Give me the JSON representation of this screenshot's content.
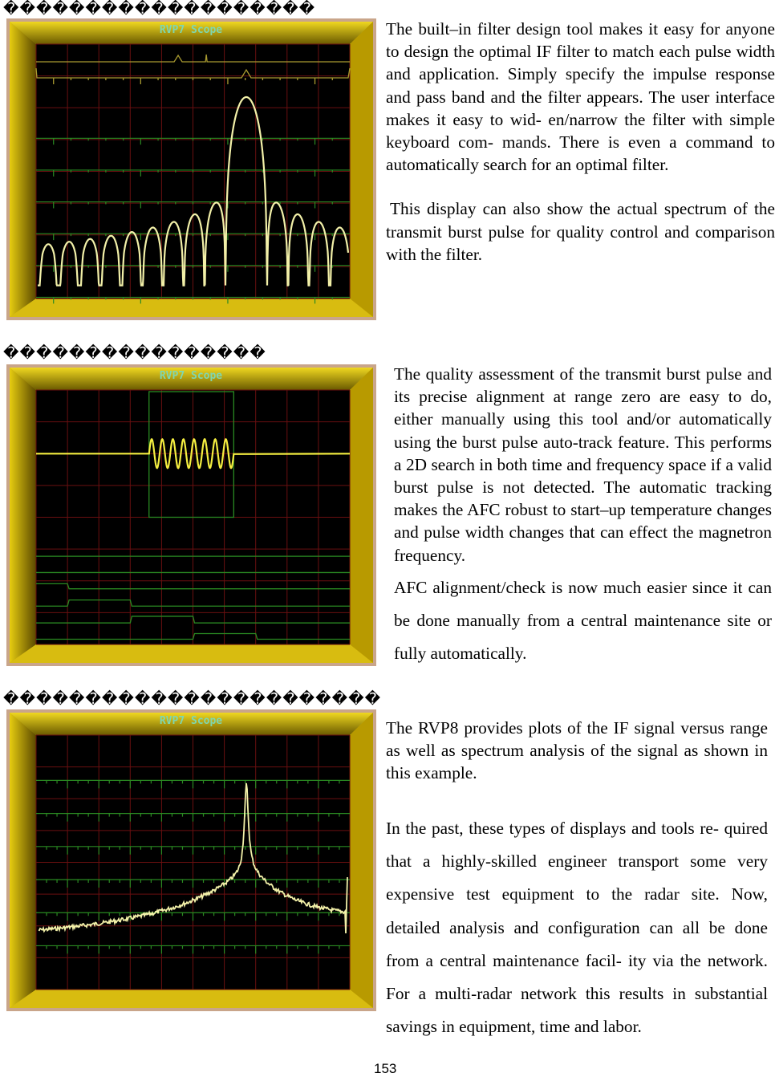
{
  "sections": [
    {
      "heading": "�������������������",
      "scope_title": "RVP7 Scope",
      "paragraphs": [
        "The built–in filter design tool makes it easy for anyone to design the optimal IF filter to match each pulse width and application. Simply specify the impulse response and pass band and the filter appears. The user interface makes it easy to wid- en/narrow the filter with simple keyboard com- mands. There is even a command to automatically search for an optimal filter.",
        "This display can also show the actual spectrum of the transmit burst pulse for quality control and comparison with the filter."
      ]
    },
    {
      "heading": "����������������",
      "scope_title": "RVP7 Scope",
      "paragraphs": [
        "The quality assessment of the transmit burst pulse and its precise alignment at range zero are easy to do, either manually using this tool and/or automatically using the burst pulse auto-track feature. This performs a 2D search in both time and frequency space if a valid burst pulse is not detected. The automatic tracking makes the AFC robust to start–up temperature changes and pulse width changes that can effect the magnetron frequency.",
        "AFC alignment/check is now much easier since it can be done manually from a central maintenance site or fully automatically."
      ]
    },
    {
      "heading": "�����������������������",
      "scope_title": "RVP7 Scope",
      "paragraphs": [
        "The RVP8 provides plots of the IF signal versus range as well as spectrum analysis of the signal as shown in this example.",
        "In the past, these types of displays and tools re- quired that a highly-skilled engineer transport some very  expensive test equipment to the radar site. Now, detailed analysis and configuration can all be done from a central maintenance facil- ity via the network. For a multi-radar network this results in substantial savings in equipment, time and labor."
      ]
    }
  ],
  "page_number": "153",
  "colors": {
    "frame": "#c8a800",
    "grid": "#6a0f10",
    "trace": "#f2f0a8",
    "green": "#2a8a22",
    "title": "#7fd6b0"
  }
}
